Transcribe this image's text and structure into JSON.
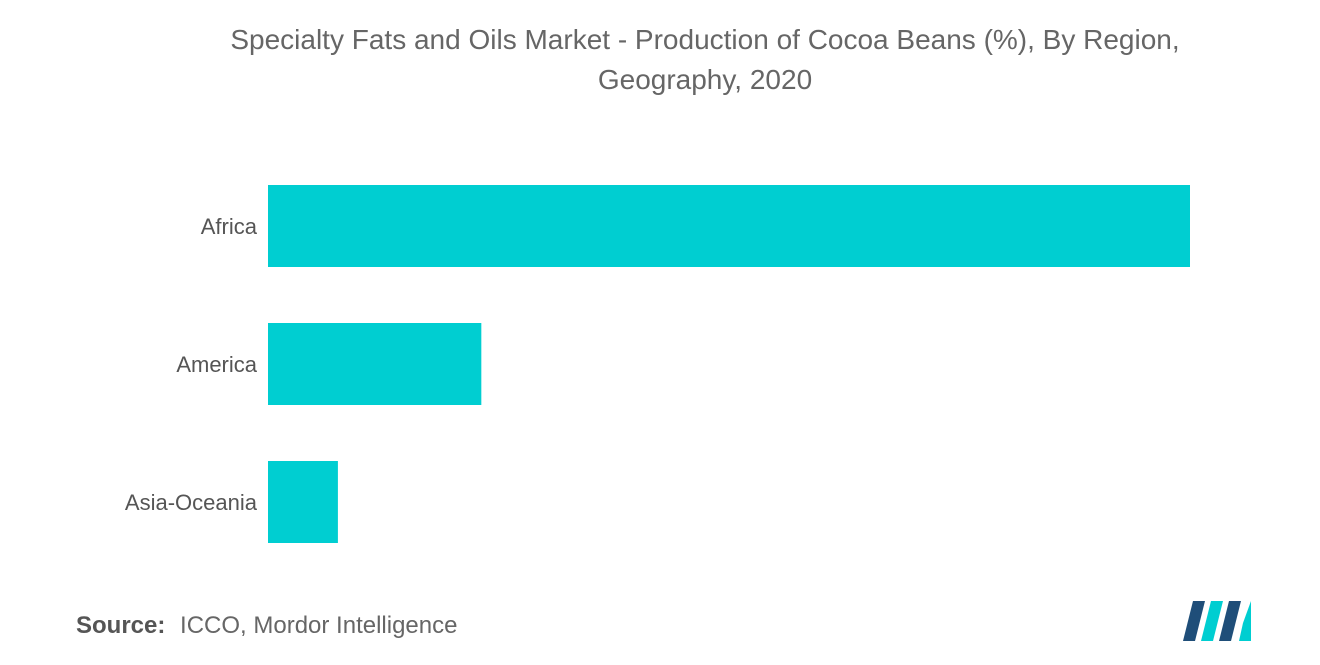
{
  "title": {
    "line1": "Specialty Fats and Oils Market - Production of Cocoa Beans (%), By Region,",
    "line2": "Geography, 2020"
  },
  "source": {
    "label": "Source:",
    "text": "ICCO, Mordor Intelligence"
  },
  "colors": {
    "bar": "#00CED1",
    "logo_dark": "#1F4E79",
    "logo_accent": "#00CED1"
  },
  "logo": {
    "icon": "mordor-intelligence-logo"
  },
  "chart_data": {
    "type": "bar",
    "orientation": "horizontal",
    "categories": [
      "Africa",
      "America",
      "Asia-Oceania"
    ],
    "values": [
      76.5,
      17.7,
      5.8
    ],
    "title": "Specialty Fats and Oils Market - Production of Cocoa Beans (%), By Region, Geography, 2020",
    "xlabel": "",
    "ylabel": "",
    "xlim": [
      0,
      76.5
    ],
    "grid": false,
    "legend": "none"
  }
}
